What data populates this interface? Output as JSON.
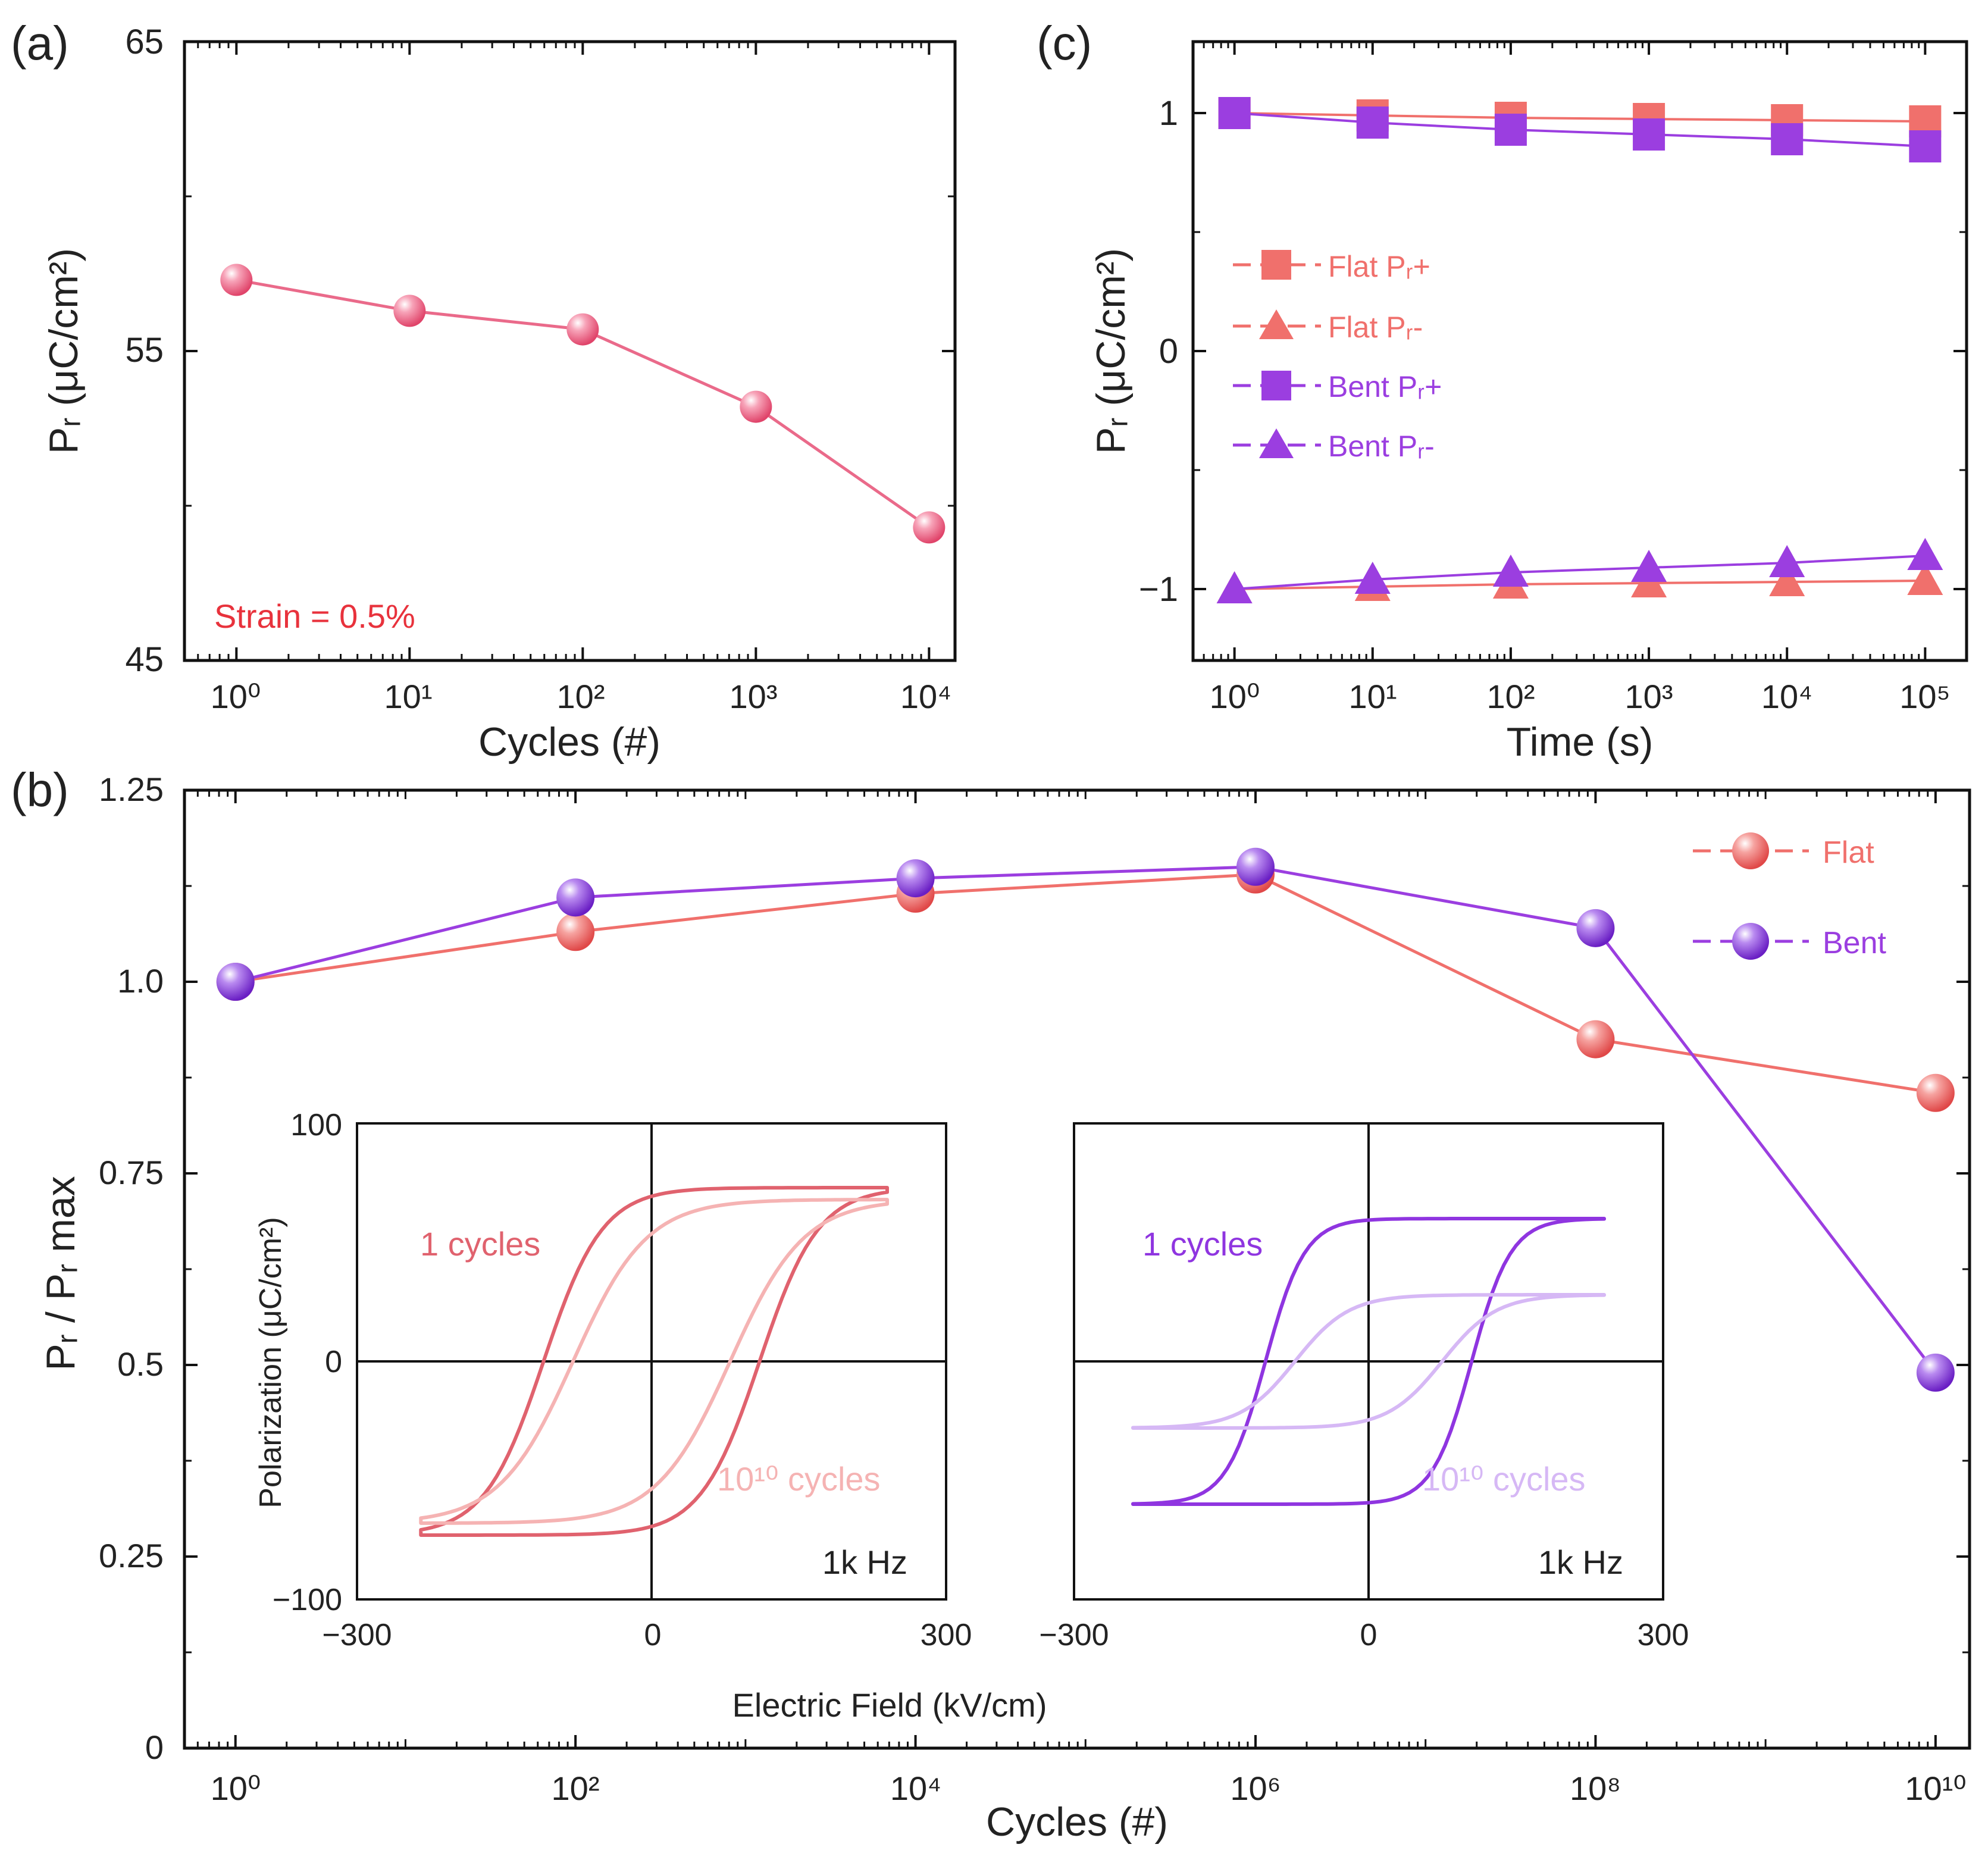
{
  "chart_data": [
    {
      "panel": "(a)",
      "type": "line",
      "x_scale": "log",
      "x": [
        1,
        10,
        100,
        1000,
        10000
      ],
      "series": [
        {
          "name": "Pr",
          "color": "#ea6a8a",
          "values": [
            57.3,
            56.3,
            55.7,
            53.2,
            49.3
          ]
        }
      ],
      "xlabel": "Cycles (#)",
      "ylabel": "Pᵣ (μC/cm²)",
      "ylim": [
        45,
        65
      ],
      "xlim_exp": [
        -0.3,
        4.15
      ],
      "yticks": [
        "45",
        "55",
        "65"
      ],
      "xticks": [
        "10⁰",
        "10¹",
        "10²",
        "10³",
        "10⁴"
      ],
      "annotation": "Strain = 0.5%"
    },
    {
      "panel": "(c)",
      "type": "line",
      "x_scale": "log",
      "x": [
        1,
        10,
        100,
        1000,
        10000,
        100000
      ],
      "series": [
        {
          "name": "Flat Pᵣ+",
          "marker": "square",
          "color": "#f0706c",
          "values": [
            1.0,
            0.99,
            0.98,
            0.975,
            0.97,
            0.965
          ]
        },
        {
          "name": "Flat Pᵣ-",
          "marker": "triangle",
          "color": "#f0706c",
          "values": [
            -1.0,
            -0.99,
            -0.98,
            -0.975,
            -0.97,
            -0.965
          ]
        },
        {
          "name": "Bent Pᵣ+",
          "marker": "square",
          "color": "#9b3ee0",
          "values": [
            1.0,
            0.96,
            0.93,
            0.91,
            0.89,
            0.86
          ]
        },
        {
          "name": "Bent Pᵣ-",
          "marker": "triangle",
          "color": "#9b3ee0",
          "values": [
            -1.0,
            -0.96,
            -0.93,
            -0.91,
            -0.89,
            -0.86
          ]
        }
      ],
      "xlabel": "Time (s)",
      "ylabel": "Pᵣ (μC/cm²)",
      "ylim": [
        -1.3,
        1.3
      ],
      "xlim_exp": [
        -0.3,
        5.3
      ],
      "yticks": [
        "−1",
        "0",
        "1"
      ],
      "xticks": [
        "10⁰",
        "10¹",
        "10²",
        "10³",
        "10⁴",
        "10⁵"
      ],
      "legend_position": "center-left"
    },
    {
      "panel": "(b)",
      "type": "line",
      "x_scale": "log",
      "x": [
        1,
        100,
        10000,
        1000000,
        100000000,
        10000000000
      ],
      "series": [
        {
          "name": "Flat",
          "color": "#f0706c",
          "values": [
            1.0,
            1.065,
            1.115,
            1.14,
            0.925,
            0.855
          ]
        },
        {
          "name": "Bent",
          "color": "#9b3ee0",
          "values": [
            1.0,
            1.11,
            1.135,
            1.15,
            1.07,
            0.49
          ]
        }
      ],
      "xlabel": "Cycles (#)",
      "ylabel": "Pᵣ / Pᵣ max",
      "ylim": [
        0,
        1.25
      ],
      "xlim_exp": [
        -0.3,
        10.2
      ],
      "yticks": [
        "0",
        "0.25",
        "0.5",
        "0.75",
        "1.0",
        "1.25"
      ],
      "xticks": [
        "10⁰",
        "10²",
        "10⁴",
        "10⁶",
        "10⁸",
        "10¹⁰"
      ],
      "legend_position": "top-right"
    },
    {
      "panel": "(b) inset left",
      "type": "line",
      "xlim": [
        -300,
        300
      ],
      "ylim": [
        -100,
        100
      ],
      "xticks": [
        "−300",
        "0",
        "300"
      ],
      "yticks": [
        "−100",
        "0",
        "100"
      ],
      "xlabel": "Electric Field (kV/cm)",
      "ylabel": "Polarization (μC/cm²)",
      "series": [
        {
          "name": "1 cycles",
          "color": "#e0626e",
          "ps": 73,
          "ec": 110,
          "w": 60,
          "emax": 240,
          "emin": -235
        },
        {
          "name": "10¹⁰ cycles",
          "color": "#f5b3b3",
          "ps": 68,
          "ec": 80,
          "w": 75,
          "emax": 240,
          "emin": -235
        }
      ],
      "labels": {
        "c1": "1 cycles",
        "c10": "10¹⁰ cycles",
        "freq": "1k Hz"
      }
    },
    {
      "panel": "(b) inset right",
      "type": "line",
      "xlim": [
        -300,
        300
      ],
      "ylim": [
        -100,
        100
      ],
      "xticks": [
        "−300",
        "0",
        "300"
      ],
      "series": [
        {
          "name": "1 cycles",
          "color": "#8f35e0",
          "ps": 60,
          "ec": 105,
          "w": 40,
          "emax": 240,
          "emin": -240
        },
        {
          "name": "10¹⁰ cycles",
          "color": "#d6b8f5",
          "ps": 28,
          "ec": 75,
          "w": 55,
          "emax": 240,
          "emin": -240
        }
      ],
      "labels": {
        "c1": "1 cycles",
        "c10": "10¹⁰ cycles",
        "freq": "1k Hz"
      }
    }
  ],
  "panel_labels": {
    "a": "(a)",
    "b": "(b)",
    "c": "(c)"
  },
  "legend_c": [
    "Flat Pᵣ+",
    "Flat Pᵣ-",
    "Bent Pᵣ+",
    "Bent Pᵣ-"
  ],
  "legend_b": [
    "Flat",
    "Bent"
  ]
}
